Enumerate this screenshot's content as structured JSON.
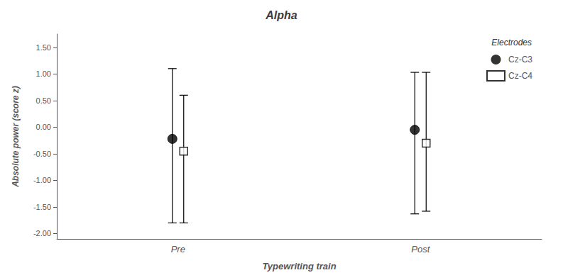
{
  "chart_data": {
    "type": "errorbar",
    "title": "Alpha",
    "x_label": "Typewriting train",
    "y_label": "Absolute power (score z)",
    "categories": [
      "Pre",
      "Post"
    ],
    "ylim": [
      -2.1,
      1.75
    ],
    "yticks": [
      {
        "value": -2.0,
        "label": "-2.00"
      },
      {
        "value": -1.5,
        "label": "-1.50"
      },
      {
        "value": -1.0,
        "label": "-1.00"
      },
      {
        "value": -0.5,
        "label": "-0.50"
      },
      {
        "value": 0.0,
        "label": "0.00"
      },
      {
        "value": 0.5,
        "label": "0.50"
      },
      {
        "value": 1.0,
        "label": "1.00"
      },
      {
        "value": 1.5,
        "label": "1.50"
      }
    ],
    "grid": false,
    "legend": "upper right",
    "legend_title": "Electrodes",
    "series": [
      {
        "name": "Cz-C3",
        "marker": "circle",
        "color": "#000000",
        "values": [
          -0.22,
          -0.05
        ],
        "upper_errors": [
          1.32,
          1.08
        ],
        "lower_errors": [
          1.58,
          1.58
        ]
      },
      {
        "name": "Cz-C4",
        "marker": "open_square",
        "color": "#000000",
        "values": [
          -0.45,
          -0.3
        ],
        "upper_errors": [
          1.05,
          1.33
        ],
        "lower_errors": [
          1.35,
          1.28
        ]
      }
    ]
  }
}
